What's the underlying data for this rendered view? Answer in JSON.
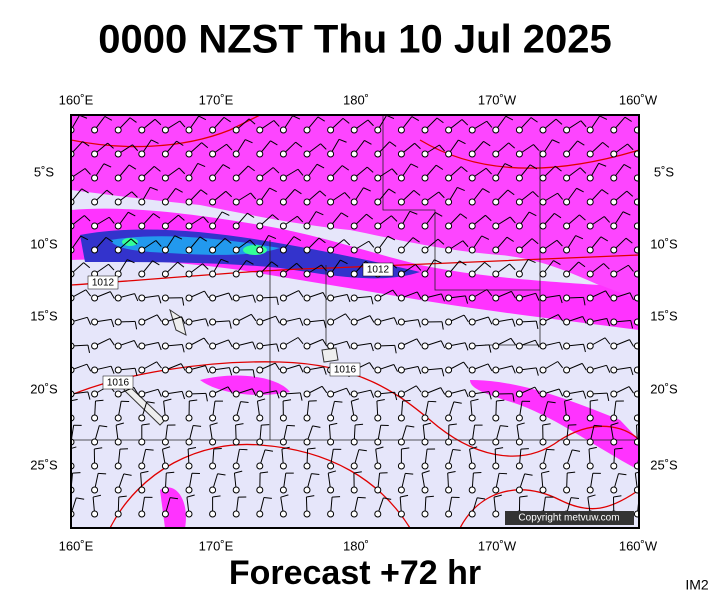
{
  "title": "0000 NZST Thu 10 Jul 2025",
  "footer": "Forecast +72 hr",
  "image_id": "IM2",
  "copyright": "Copyright metvuw.com",
  "lon_labels": [
    "160˚E",
    "170˚E",
    "180˚",
    "170˚W",
    "160˚W"
  ],
  "lat_labels": [
    "5˚S",
    "10˚S",
    "15˚S",
    "20˚S",
    "25˚S"
  ],
  "isobar_labels": [
    "1012",
    "1012",
    "1016",
    "1016"
  ]
}
